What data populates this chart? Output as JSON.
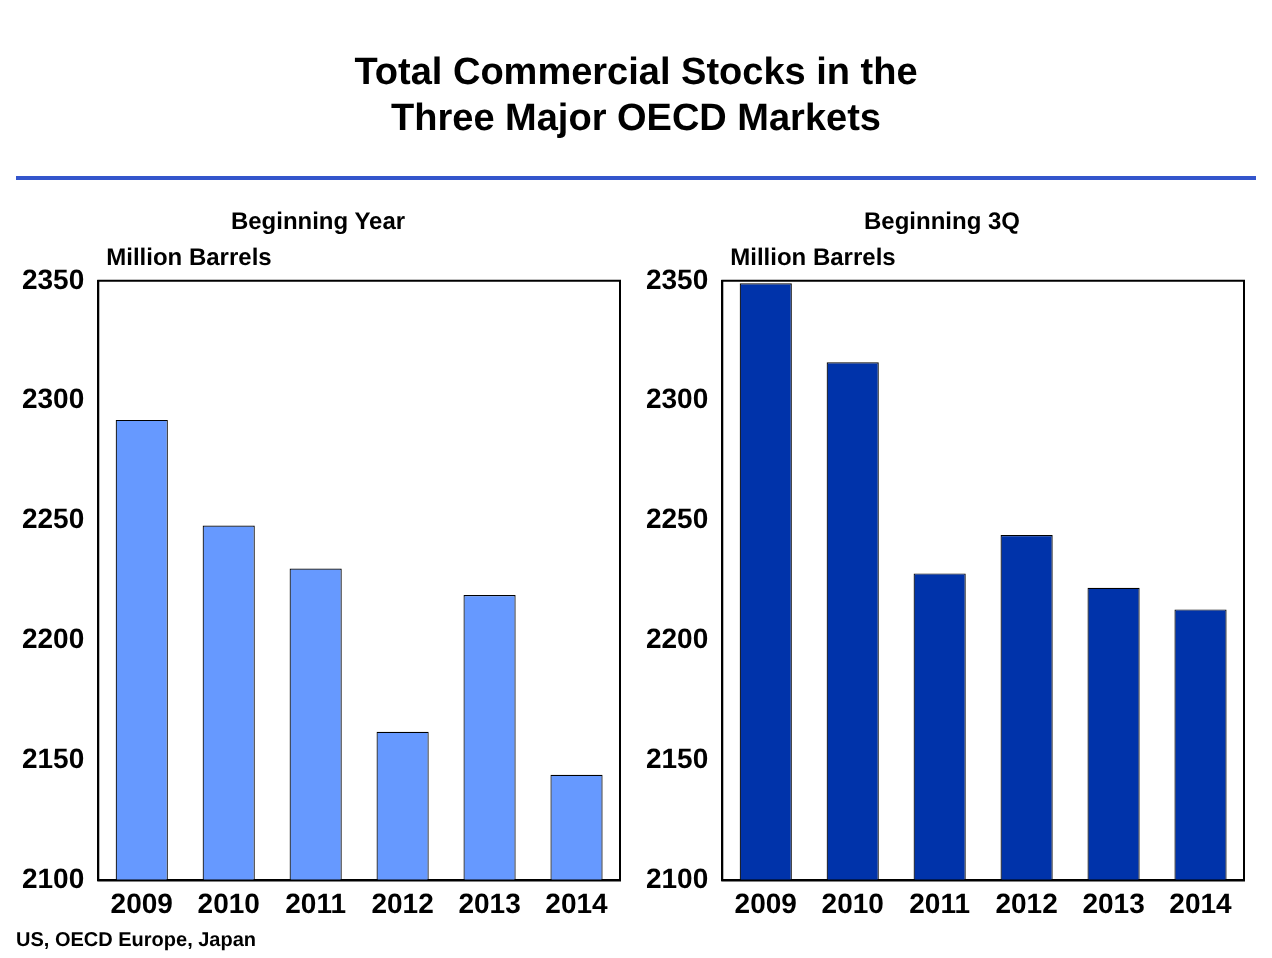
{
  "chart_data": [
    {
      "type": "bar",
      "title": "Total Commercial Stocks in the Three Major OECD Markets",
      "subtitle": "Beginning Year",
      "ylabel": "Million Barrels",
      "categories": [
        "2009",
        "2010",
        "2011",
        "2012",
        "2013",
        "2014"
      ],
      "values": [
        2292,
        2248,
        2230,
        2162,
        2219,
        2144
      ],
      "color": "#6699ff",
      "ylim": [
        2100,
        2350
      ],
      "yticks": [
        2100,
        2150,
        2200,
        2250,
        2300,
        2350
      ],
      "grid": false,
      "annotations": [
        "US, OECD Europe, Japan"
      ]
    },
    {
      "type": "bar",
      "subtitle": "Beginning 3Q",
      "ylabel": "Million Barrels",
      "categories": [
        "2009",
        "2010",
        "2011",
        "2012",
        "2013",
        "2014"
      ],
      "values": [
        2349,
        2316,
        2228,
        2244,
        2222,
        2213
      ],
      "color": "#0033aa",
      "ylim": [
        2100,
        2350
      ],
      "yticks": [
        2100,
        2150,
        2200,
        2250,
        2300,
        2350
      ],
      "grid": false
    }
  ]
}
